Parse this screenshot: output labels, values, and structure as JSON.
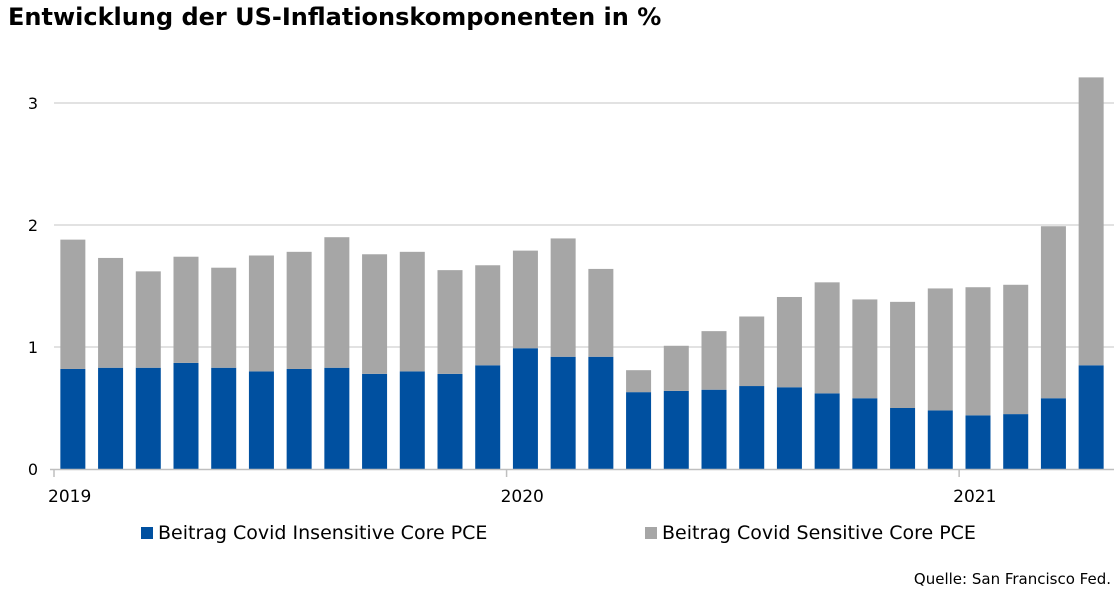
{
  "title": "Entwicklung der US-Inflationskomponenten in %",
  "source": "Quelle: San Francisco Fed.",
  "colors": {
    "insensitive": "#0050A0",
    "sensitive": "#A6A6A6",
    "grid": "#D9D9D9"
  },
  "chart_data": {
    "type": "bar",
    "stacked": true,
    "title": "Entwicklung der US-Inflationskomponenten in %",
    "xlabel": "",
    "ylabel": "",
    "ylim": [
      0,
      3.2
    ],
    "yticks": [
      0,
      1,
      2,
      3
    ],
    "grid": true,
    "legend_position": "bottom",
    "x_tick_labels": [
      {
        "label": "2019",
        "index": 0
      },
      {
        "label": "2020",
        "index": 12
      },
      {
        "label": "2021",
        "index": 24
      }
    ],
    "categories": [
      "2019-01",
      "2019-02",
      "2019-03",
      "2019-04",
      "2019-05",
      "2019-06",
      "2019-07",
      "2019-08",
      "2019-09",
      "2019-10",
      "2019-11",
      "2019-12",
      "2020-01",
      "2020-02",
      "2020-03",
      "2020-04",
      "2020-05",
      "2020-06",
      "2020-07",
      "2020-08",
      "2020-09",
      "2020-10",
      "2020-11",
      "2020-12",
      "2021-01",
      "2021-02",
      "2021-03",
      "2021-04"
    ],
    "series": [
      {
        "name": "Beitrag Covid Insensitive Core PCE",
        "values": [
          0.82,
          0.83,
          0.83,
          0.87,
          0.83,
          0.8,
          0.82,
          0.83,
          0.78,
          0.8,
          0.78,
          0.85,
          0.99,
          0.92,
          0.92,
          0.63,
          0.64,
          0.65,
          0.68,
          0.67,
          0.62,
          0.58,
          0.5,
          0.48,
          0.44,
          0.45,
          0.58,
          0.85
        ]
      },
      {
        "name": "Beitrag Covid Sensitive Core PCE",
        "values": [
          1.06,
          0.9,
          0.79,
          0.87,
          0.82,
          0.95,
          0.96,
          1.07,
          0.98,
          0.98,
          0.85,
          0.82,
          0.8,
          0.97,
          0.72,
          0.18,
          0.37,
          0.48,
          0.57,
          0.74,
          0.91,
          0.81,
          0.87,
          1.0,
          1.05,
          1.06,
          1.41,
          2.36
        ]
      }
    ]
  }
}
